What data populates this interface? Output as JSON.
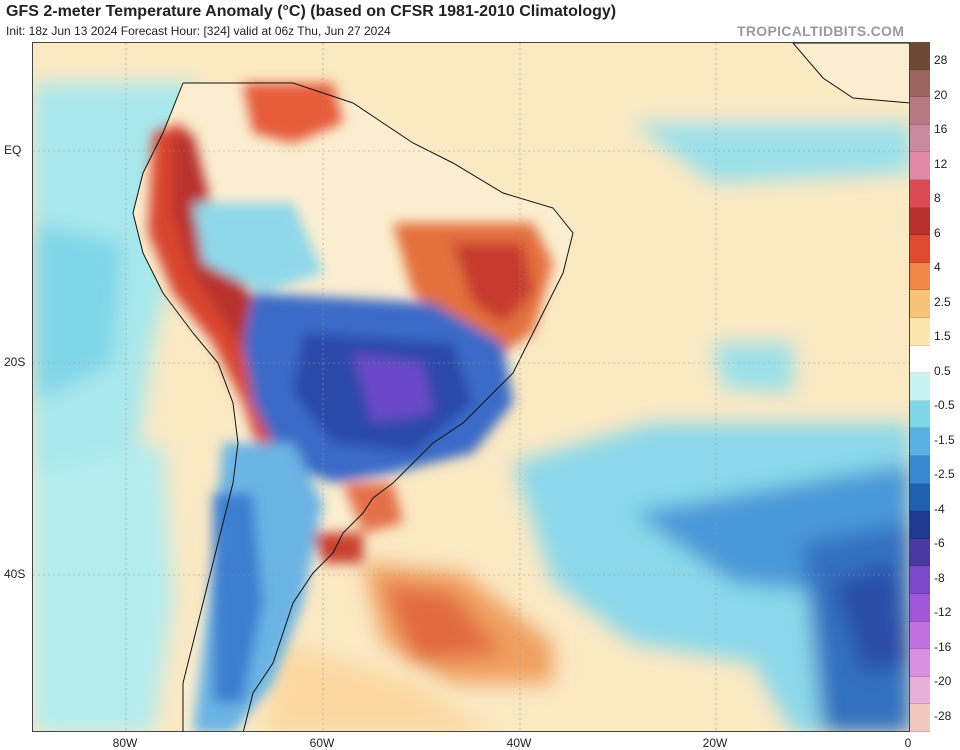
{
  "header": {
    "title": "GFS 2-meter Temperature Anomaly (°C) (based on CFSR 1981-2010 Climatology)",
    "subtitle": "Init: 18z Jun 13 2024   Forecast Hour: [324]   valid at 06z Thu, Jun 27 2024",
    "watermark": "TROPICALTIDBITS.COM"
  },
  "axes": {
    "y_labels": [
      "EQ",
      "20S",
      "40S"
    ],
    "x_labels": [
      "80W",
      "60W",
      "40W",
      "20W",
      "0"
    ]
  },
  "colorbar": {
    "labels": [
      "28",
      "20",
      "16",
      "12",
      "8",
      "6",
      "4",
      "2.5",
      "1.5",
      "0.5",
      "-0.5",
      "-1.5",
      "-2.5",
      "-4",
      "-6",
      "-8",
      "-12",
      "-16",
      "-20",
      "-28"
    ],
    "colors": [
      "#6e4a36",
      "#9a6560",
      "#b57a82",
      "#c98aa0",
      "#e08aa8",
      "#d94a55",
      "#b8302f",
      "#e04a30",
      "#f0884a",
      "#f7c27a",
      "#fbe6b0",
      "#ffffff",
      "#c9f2f2",
      "#7fd6e8",
      "#5ab0e0",
      "#3a88d0",
      "#2060b0",
      "#203a90",
      "#4a3aa0",
      "#7a48c8",
      "#a058d8",
      "#c070e0",
      "#d890e0",
      "#e8b0d8",
      "#f0c8c0"
    ]
  },
  "map": {
    "region": "South America and South Atlantic",
    "lon_range": [
      -90,
      0
    ],
    "lat_range": [
      -58,
      10
    ]
  }
}
